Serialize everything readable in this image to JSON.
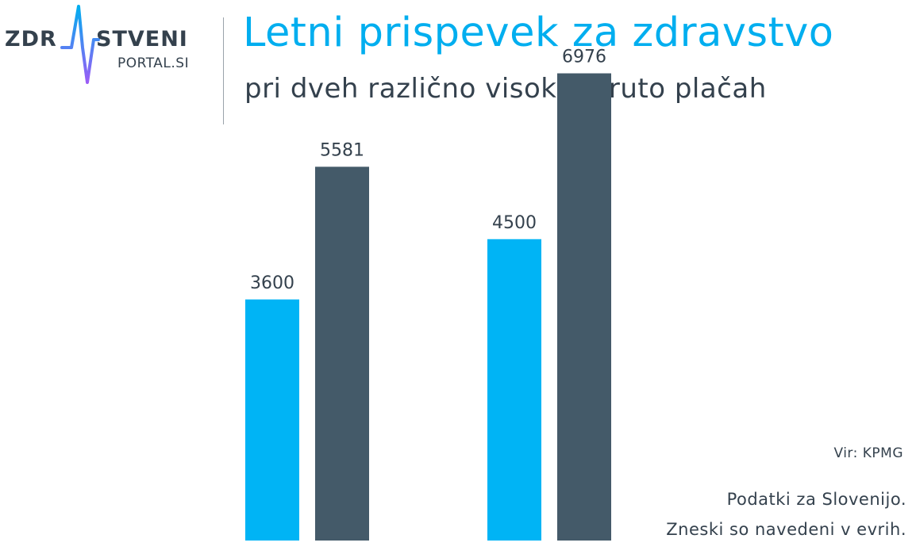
{
  "logo": {
    "word1": "ZDR",
    "word2": "STVENI",
    "sub": "PORTAL.SI"
  },
  "header": {
    "title": "Letni prispevek za zdravstvo",
    "subtitle": "pri dveh različno visokih bruto plačah"
  },
  "notes": {
    "source": "Vir: KPMG",
    "line1": "Podatki za Slovenijo.",
    "line2": "Zneski so navedeni v evrih."
  },
  "colors": {
    "accent": "#00b4f5",
    "dark": "#445a69",
    "text": "#34414d"
  },
  "chart_data": {
    "type": "bar",
    "categories": [
      "",
      ""
    ],
    "series": [
      {
        "values": [
          3600,
          4500
        ],
        "color": "#00b4f5"
      },
      {
        "values": [
          5581,
          6976
        ],
        "color": "#445a69"
      }
    ],
    "ylim": [
      0,
      8000
    ],
    "grid": false,
    "title": "",
    "xlabel": "",
    "ylabel": ""
  }
}
